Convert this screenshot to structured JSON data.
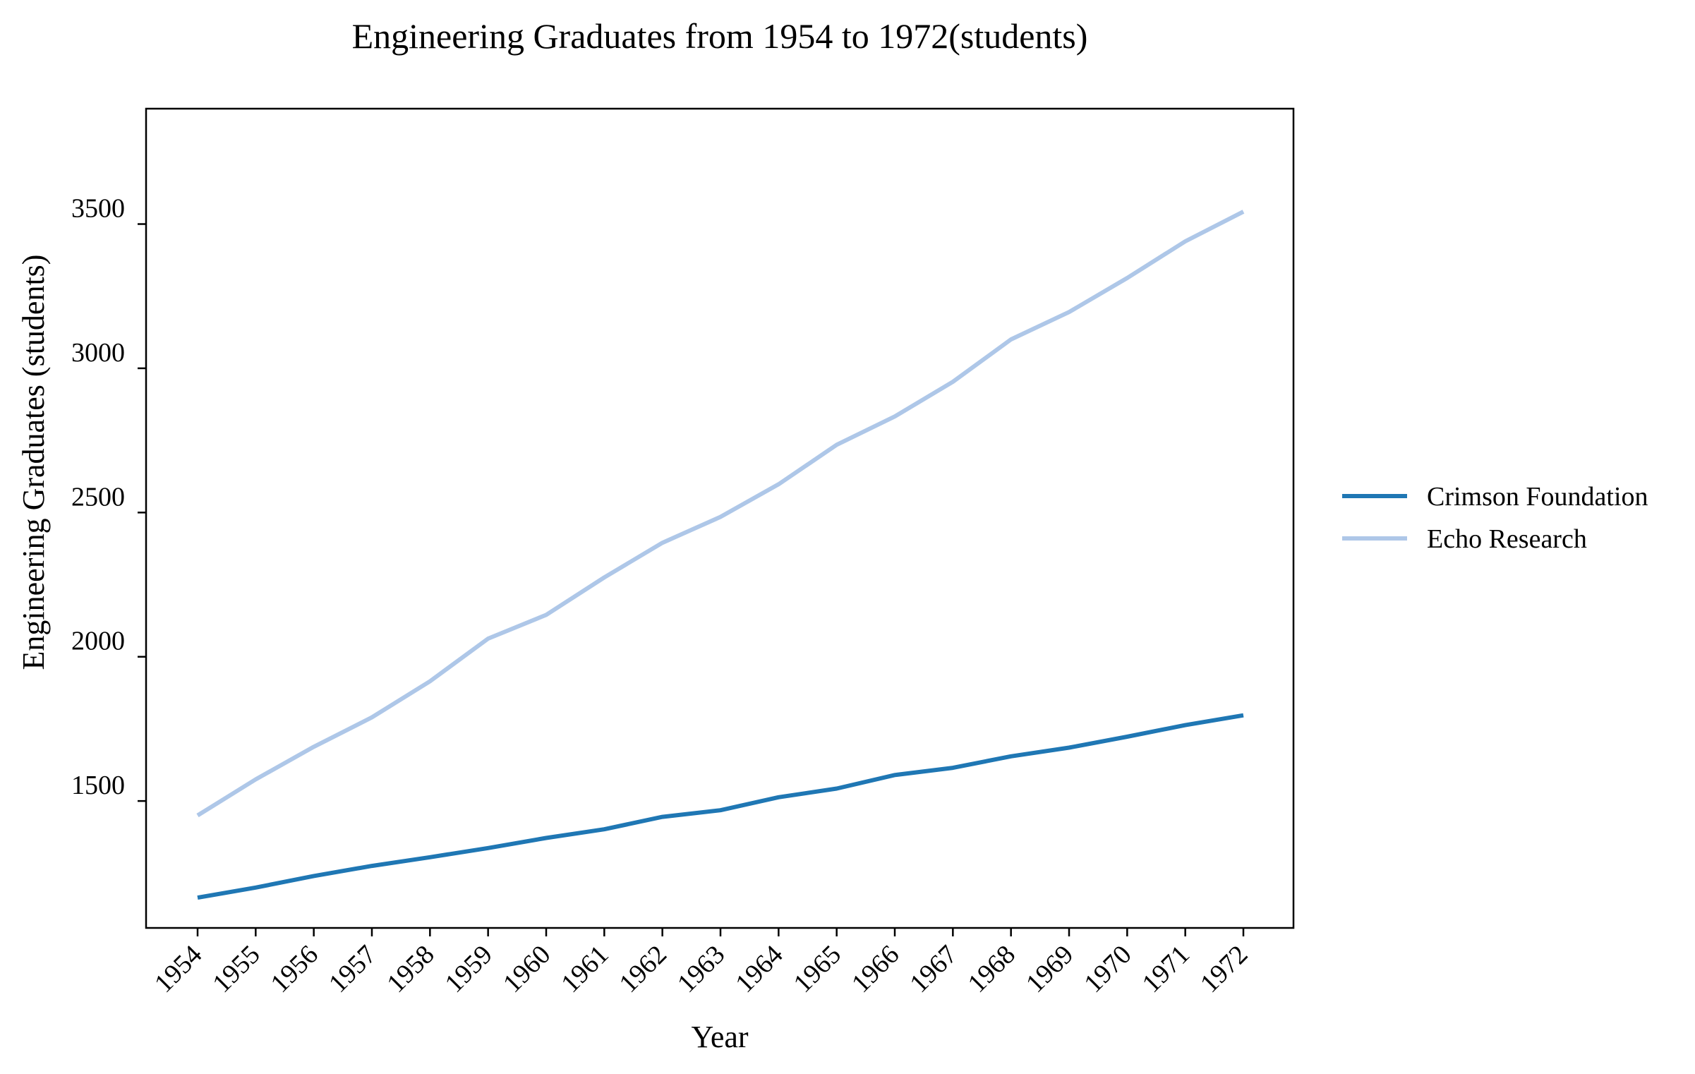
{
  "chart_data": {
    "type": "line",
    "title": "Engineering Graduates from 1954 to 1972(students)",
    "xlabel": "Year",
    "ylabel": "Engineering Graduates (students)",
    "x": [
      "1954",
      "1955",
      "1956",
      "1957",
      "1958",
      "1959",
      "1960",
      "1961",
      "1962",
      "1963",
      "1964",
      "1965",
      "1966",
      "1967",
      "1968",
      "1969",
      "1970",
      "1971",
      "1972"
    ],
    "ylim": [
      1060,
      3900
    ],
    "yticks": [
      1500,
      2000,
      2500,
      3000,
      3500
    ],
    "grid": false,
    "legend_position": "right",
    "series": [
      {
        "name": "Crimson Foundation",
        "color": "#1f77b4",
        "values": [
          1165,
          1200,
          1240,
          1275,
          1305,
          1337,
          1372,
          1402,
          1445,
          1468,
          1513,
          1543,
          1590,
          1615,
          1655,
          1685,
          1723,
          1763,
          1797
        ]
      },
      {
        "name": "Echo Research",
        "color": "#aec7e8",
        "values": [
          1450,
          1575,
          1688,
          1790,
          1915,
          2063,
          2145,
          2275,
          2395,
          2485,
          2598,
          2735,
          2833,
          2953,
          3100,
          3195,
          3313,
          3440,
          3543
        ]
      }
    ]
  }
}
